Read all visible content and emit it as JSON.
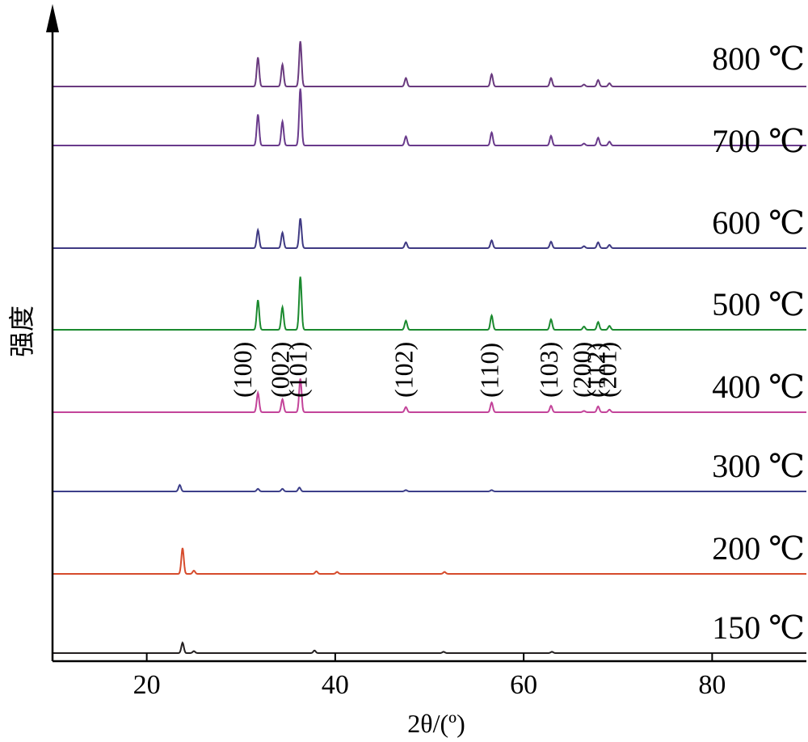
{
  "chart_data": {
    "type": "line",
    "title": "",
    "xlabel": "2θ/(º)",
    "ylabel": "强度",
    "xlim": [
      10,
      90
    ],
    "xticks": [
      "20",
      "40",
      "60",
      "80"
    ],
    "xtick_values": [
      20,
      40,
      60,
      80
    ],
    "grid": false,
    "legend": "none",
    "colors": {
      "axis": "#000000",
      "s150": "#231f20",
      "s200": "#d64b2c",
      "s300": "#3d3f8a",
      "s400": "#c3449a",
      "s500": "#1b8a2f",
      "s600": "#3f3a83",
      "s700": "#6a3b8c",
      "s800": "#6a3b7f"
    },
    "hkl_labels": [
      {
        "text": "(100)",
        "x": 31.8
      },
      {
        "text": "(002)",
        "x": 34.4
      },
      {
        "text": "(101)",
        "x": 36.3
      },
      {
        "text": "(102)",
        "x": 47.5
      },
      {
        "text": "(110)",
        "x": 56.6
      },
      {
        "text": "(103)",
        "x": 62.9
      },
      {
        "text": "(200)",
        "x": 66.4
      },
      {
        "text": "(112)",
        "x": 67.9
      },
      {
        "text": "(201)",
        "x": 69.1
      }
    ],
    "series": [
      {
        "name": "150 ℃",
        "key": "s150",
        "baseline": 0.4,
        "peaks": [
          [
            23.8,
            1.6
          ],
          [
            25.0,
            0.3
          ],
          [
            37.8,
            0.4
          ],
          [
            51.5,
            0.2
          ],
          [
            63.0,
            0.2
          ]
        ]
      },
      {
        "name": "200 ℃",
        "key": "s200",
        "baseline": 0.4,
        "peaks": [
          [
            23.8,
            4.0
          ],
          [
            25.0,
            0.5
          ],
          [
            38.0,
            0.4
          ],
          [
            40.2,
            0.3
          ],
          [
            51.6,
            0.3
          ]
        ]
      },
      {
        "name": "300 ℃",
        "key": "s300",
        "baseline": 0.4,
        "peaks": [
          [
            23.5,
            1.0
          ],
          [
            31.8,
            0.4
          ],
          [
            34.4,
            0.4
          ],
          [
            36.2,
            0.6
          ],
          [
            47.5,
            0.2
          ],
          [
            56.6,
            0.2
          ]
        ]
      },
      {
        "name": "400 ℃",
        "key": "s400",
        "baseline": 0.4,
        "peaks": [
          [
            31.8,
            3.0
          ],
          [
            34.4,
            2.0
          ],
          [
            36.3,
            5.2
          ],
          [
            47.5,
            0.8
          ],
          [
            56.6,
            1.5
          ],
          [
            62.9,
            1.0
          ],
          [
            66.4,
            0.2
          ],
          [
            67.9,
            0.9
          ],
          [
            69.1,
            0.4
          ]
        ]
      },
      {
        "name": "500 ℃",
        "key": "s500",
        "baseline": 0.4,
        "peaks": [
          [
            31.8,
            4.6
          ],
          [
            34.4,
            3.5
          ],
          [
            36.3,
            8.2
          ],
          [
            47.5,
            1.4
          ],
          [
            56.6,
            2.2
          ],
          [
            62.9,
            1.6
          ],
          [
            66.4,
            0.5
          ],
          [
            67.9,
            1.2
          ],
          [
            69.1,
            0.6
          ]
        ]
      },
      {
        "name": "600 ℃",
        "key": "s600",
        "baseline": 0.4,
        "peaks": [
          [
            31.8,
            2.8
          ],
          [
            34.4,
            2.4
          ],
          [
            36.3,
            4.6
          ],
          [
            47.5,
            0.9
          ],
          [
            56.6,
            1.2
          ],
          [
            62.9,
            1.0
          ],
          [
            66.4,
            0.3
          ],
          [
            67.9,
            0.9
          ],
          [
            69.1,
            0.5
          ]
        ]
      },
      {
        "name": "700 ℃",
        "key": "s700",
        "baseline": 0.4,
        "peaks": [
          [
            31.8,
            4.8
          ],
          [
            34.4,
            3.7
          ],
          [
            36.3,
            8.8
          ],
          [
            47.5,
            1.4
          ],
          [
            56.6,
            2.0
          ],
          [
            62.9,
            1.5
          ],
          [
            66.4,
            0.3
          ],
          [
            67.9,
            1.2
          ],
          [
            69.1,
            0.6
          ]
        ]
      },
      {
        "name": "800 ℃",
        "key": "s800",
        "baseline": 0.4,
        "peaks": [
          [
            31.8,
            4.5
          ],
          [
            34.4,
            3.4
          ],
          [
            36.3,
            7.0
          ],
          [
            47.5,
            1.3
          ],
          [
            56.6,
            1.9
          ],
          [
            62.9,
            1.3
          ],
          [
            66.4,
            0.3
          ],
          [
            67.9,
            1.0
          ],
          [
            69.1,
            0.5
          ]
        ]
      }
    ]
  }
}
